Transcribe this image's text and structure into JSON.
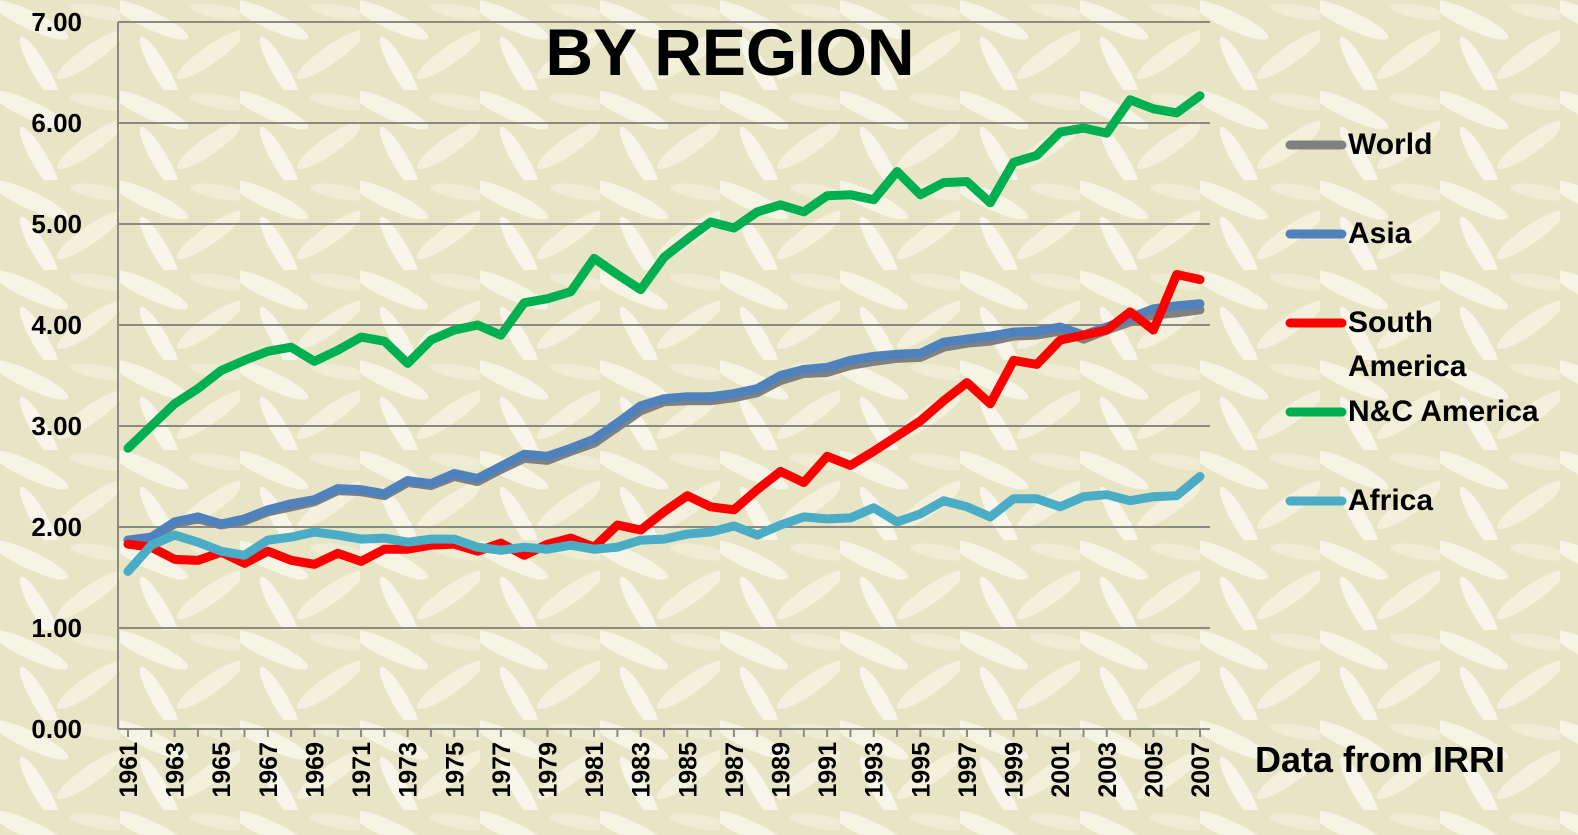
{
  "chart_data": {
    "type": "line",
    "title": "BY REGION",
    "annotation": "Data from IRRI",
    "categories": [
      "1961",
      null,
      "1963",
      null,
      "1965",
      null,
      "1967",
      null,
      "1969",
      null,
      "1971",
      null,
      "1973",
      null,
      "1975",
      null,
      "1977",
      null,
      "1979",
      null,
      "1981",
      null,
      "1983",
      null,
      "1985",
      null,
      "1987",
      null,
      "1989",
      null,
      "1991",
      null,
      "1993",
      null,
      "1995",
      null,
      "1997",
      null,
      "1999",
      null,
      "2001",
      null,
      "2003",
      null,
      "2005",
      null,
      "2007"
    ],
    "ylim": [
      0,
      7
    ],
    "yticks": [
      {
        "value": 0,
        "label": "0.00"
      },
      {
        "value": 1,
        "label": "1.00"
      },
      {
        "value": 2,
        "label": "2.00"
      },
      {
        "value": 3,
        "label": "3.00"
      },
      {
        "value": 4,
        "label": "4.00"
      },
      {
        "value": 5,
        "label": "5.00"
      },
      {
        "value": 6,
        "label": "6.00"
      },
      {
        "value": 7,
        "label": "7.00"
      }
    ],
    "grid": true,
    "legend": "right",
    "series": [
      {
        "name": "World",
        "color": "#808080",
        "values": [
          1.87,
          1.88,
          2.03,
          2.08,
          2.02,
          2.06,
          2.15,
          2.2,
          2.25,
          2.36,
          2.35,
          2.31,
          2.44,
          2.41,
          2.5,
          2.45,
          2.57,
          2.68,
          2.66,
          2.75,
          2.83,
          2.99,
          3.15,
          3.24,
          3.25,
          3.25,
          3.28,
          3.33,
          3.45,
          3.52,
          3.53,
          3.6,
          3.64,
          3.67,
          3.68,
          3.78,
          3.82,
          3.84,
          3.89,
          3.9,
          3.94,
          3.86,
          3.95,
          4.03,
          4.1,
          4.12,
          4.15
        ]
      },
      {
        "name": "Asia",
        "color": "#4f81bd",
        "values": [
          1.87,
          1.9,
          2.05,
          2.1,
          2.03,
          2.08,
          2.17,
          2.23,
          2.27,
          2.38,
          2.37,
          2.33,
          2.46,
          2.43,
          2.53,
          2.48,
          2.6,
          2.72,
          2.7,
          2.78,
          2.87,
          3.03,
          3.2,
          3.27,
          3.29,
          3.29,
          3.32,
          3.37,
          3.5,
          3.56,
          3.58,
          3.65,
          3.69,
          3.71,
          3.72,
          3.83,
          3.86,
          3.89,
          3.93,
          3.94,
          3.98,
          3.9,
          3.98,
          4.07,
          4.16,
          4.19,
          4.21
        ]
      },
      {
        "name": "South America",
        "color": "#ff0000",
        "values": [
          1.83,
          1.8,
          1.68,
          1.67,
          1.75,
          1.64,
          1.76,
          1.67,
          1.63,
          1.74,
          1.66,
          1.78,
          1.78,
          1.82,
          1.83,
          1.76,
          1.84,
          1.72,
          1.83,
          1.89,
          1.8,
          2.02,
          1.97,
          2.15,
          2.31,
          2.2,
          2.17,
          2.37,
          2.55,
          2.44,
          2.7,
          2.61,
          2.75,
          2.9,
          3.05,
          3.25,
          3.43,
          3.22,
          3.65,
          3.61,
          3.85,
          3.9,
          3.95,
          4.13,
          3.95,
          4.5,
          4.45
        ]
      },
      {
        "name": "N&C America",
        "color": "#00b050",
        "values": [
          2.78,
          3.0,
          3.22,
          3.37,
          3.55,
          3.65,
          3.74,
          3.78,
          3.64,
          3.75,
          3.88,
          3.84,
          3.62,
          3.85,
          3.95,
          4.0,
          3.9,
          4.22,
          4.26,
          4.33,
          4.66,
          4.5,
          4.35,
          4.67,
          4.85,
          5.02,
          4.96,
          5.12,
          5.19,
          5.12,
          5.28,
          5.29,
          5.24,
          5.52,
          5.29,
          5.41,
          5.42,
          5.21,
          5.61,
          5.68,
          5.91,
          5.95,
          5.9,
          6.23,
          6.14,
          6.1,
          6.27
        ]
      },
      {
        "name": "Africa",
        "color": "#4bacc6",
        "values": [
          1.56,
          1.82,
          1.92,
          1.85,
          1.76,
          1.72,
          1.87,
          1.9,
          1.95,
          1.92,
          1.88,
          1.89,
          1.85,
          1.88,
          1.88,
          1.8,
          1.77,
          1.8,
          1.78,
          1.82,
          1.78,
          1.8,
          1.87,
          1.88,
          1.93,
          1.95,
          2.01,
          1.92,
          2.02,
          2.1,
          2.08,
          2.09,
          2.19,
          2.05,
          2.13,
          2.26,
          2.2,
          2.1,
          2.28,
          2.28,
          2.2,
          2.3,
          2.32,
          2.26,
          2.3,
          2.31,
          2.5
        ]
      }
    ]
  }
}
